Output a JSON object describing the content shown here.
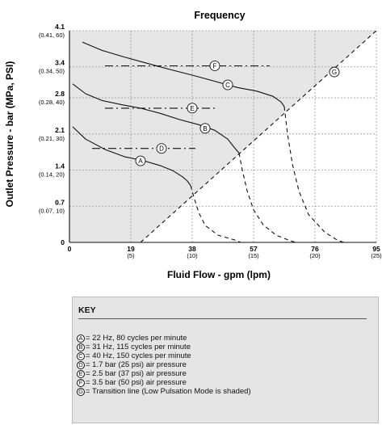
{
  "chart_data": {
    "type": "line",
    "title": "Frequency",
    "xlabel": "Fluid Flow - gpm (lpm)",
    "ylabel": "Outlet Pressure - bar (MPa, PSI)",
    "xlim": [
      0,
      95
    ],
    "ylim": [
      0,
      4.1
    ],
    "x_ticks": [
      {
        "value": 19,
        "label": "19",
        "sub": "(5)"
      },
      {
        "value": 38,
        "label": "38",
        "sub": "(10)"
      },
      {
        "value": 57,
        "label": "57",
        "sub": "(15)"
      },
      {
        "value": 76,
        "label": "76",
        "sub": "(20)"
      },
      {
        "value": 95,
        "label": "95",
        "sub": "(25)"
      }
    ],
    "x_zero_label": "0",
    "y_ticks": [
      {
        "value": 0,
        "label": "0",
        "sub": ""
      },
      {
        "value": 0.7,
        "label": "0.7",
        "sub": "(0.07, 10)"
      },
      {
        "value": 1.4,
        "label": "1.4",
        "sub": "(0.14, 20)"
      },
      {
        "value": 2.1,
        "label": "2.1",
        "sub": "(0.21, 30)"
      },
      {
        "value": 2.8,
        "label": "2.8",
        "sub": "(0.28, 40)"
      },
      {
        "value": 3.4,
        "label": "3.4",
        "sub": "(0.34, 50)"
      },
      {
        "value": 4.1,
        "label": "4.1",
        "sub": "(0.41, 60)"
      }
    ],
    "grid": true,
    "low_pulsation_region": "shaded",
    "shade_color": "#e6e6e6",
    "series": [
      {
        "id": "A",
        "style": "solid",
        "x": [
          1,
          5,
          11,
          17,
          23,
          28,
          32,
          35,
          36.5,
          37.5
        ],
        "y": [
          2.24,
          2.0,
          1.8,
          1.66,
          1.58,
          1.49,
          1.39,
          1.27,
          1.19,
          1.1
        ]
      },
      {
        "id": "A",
        "style": "dashed",
        "x": [
          37.5,
          38.5,
          40,
          42,
          46,
          51,
          53
        ],
        "y": [
          1.1,
          0.88,
          0.58,
          0.33,
          0.14,
          0.05,
          0.0
        ]
      },
      {
        "id": "B",
        "style": "solid",
        "x": [
          1,
          5,
          10,
          16,
          22,
          28,
          34,
          40,
          45,
          49,
          51,
          52.5
        ],
        "y": [
          3.07,
          2.88,
          2.75,
          2.67,
          2.6,
          2.5,
          2.38,
          2.28,
          2.17,
          2.0,
          1.84,
          1.73
        ]
      },
      {
        "id": "B",
        "style": "dashed",
        "x": [
          52.5,
          53.5,
          55,
          57,
          60,
          64,
          68,
          70
        ],
        "y": [
          1.73,
          1.4,
          1.0,
          0.63,
          0.34,
          0.14,
          0.04,
          0.0
        ]
      },
      {
        "id": "C",
        "style": "solid",
        "x": [
          4,
          10,
          17,
          24,
          31,
          38,
          45,
          52,
          58,
          63,
          65.5,
          66.5
        ],
        "y": [
          3.88,
          3.72,
          3.59,
          3.47,
          3.35,
          3.24,
          3.12,
          3.0,
          2.93,
          2.83,
          2.72,
          2.63
        ]
      },
      {
        "id": "C",
        "style": "dashed",
        "x": [
          66.5,
          67.5,
          69,
          71,
          74,
          79,
          83,
          85
        ],
        "y": [
          2.63,
          2.1,
          1.52,
          1.0,
          0.54,
          0.2,
          0.04,
          0.0
        ]
      },
      {
        "id": "D",
        "style": "dashdot",
        "x": [
          7,
          39
        ],
        "y": [
          1.82,
          1.82
        ]
      },
      {
        "id": "E",
        "style": "dashdot",
        "x": [
          11,
          46
        ],
        "y": [
          2.6,
          2.6
        ]
      },
      {
        "id": "F",
        "style": "dashdot",
        "x": [
          11,
          62
        ],
        "y": [
          3.42,
          3.42
        ]
      },
      {
        "id": "G",
        "style": "dashed",
        "x": [
          22,
          95
        ],
        "y": [
          0.0,
          4.1
        ]
      }
    ],
    "markers": [
      {
        "label": "A",
        "x": 22,
        "y": 1.58
      },
      {
        "label": "B",
        "x": 42,
        "y": 2.21
      },
      {
        "label": "C",
        "x": 49,
        "y": 3.05
      },
      {
        "label": "D",
        "x": 28.5,
        "y": 1.82
      },
      {
        "label": "E",
        "x": 38,
        "y": 2.6
      },
      {
        "label": "F",
        "x": 45,
        "y": 3.42
      },
      {
        "label": "G",
        "x": 82,
        "y": 3.3
      }
    ]
  },
  "key": {
    "title": "KEY",
    "items": [
      {
        "marker": "A",
        "text": "= 22 Hz, 80 cycles per minute"
      },
      {
        "marker": "B",
        "text": "= 31 Hz, 115 cycles per minute"
      },
      {
        "marker": "C",
        "text": "= 40 Hz, 150 cycles per minute"
      },
      {
        "marker": "D",
        "text": "= 1.7 bar (25 psi) air pressure"
      },
      {
        "marker": "E",
        "text": "= 2.5 bar (37 psi) air pressure"
      },
      {
        "marker": "F",
        "text": "= 3.5 bar (50 psi) air pressure"
      },
      {
        "marker": "G",
        "text": "= Transition line (Low Pulsation Mode is shaded)"
      }
    ]
  }
}
